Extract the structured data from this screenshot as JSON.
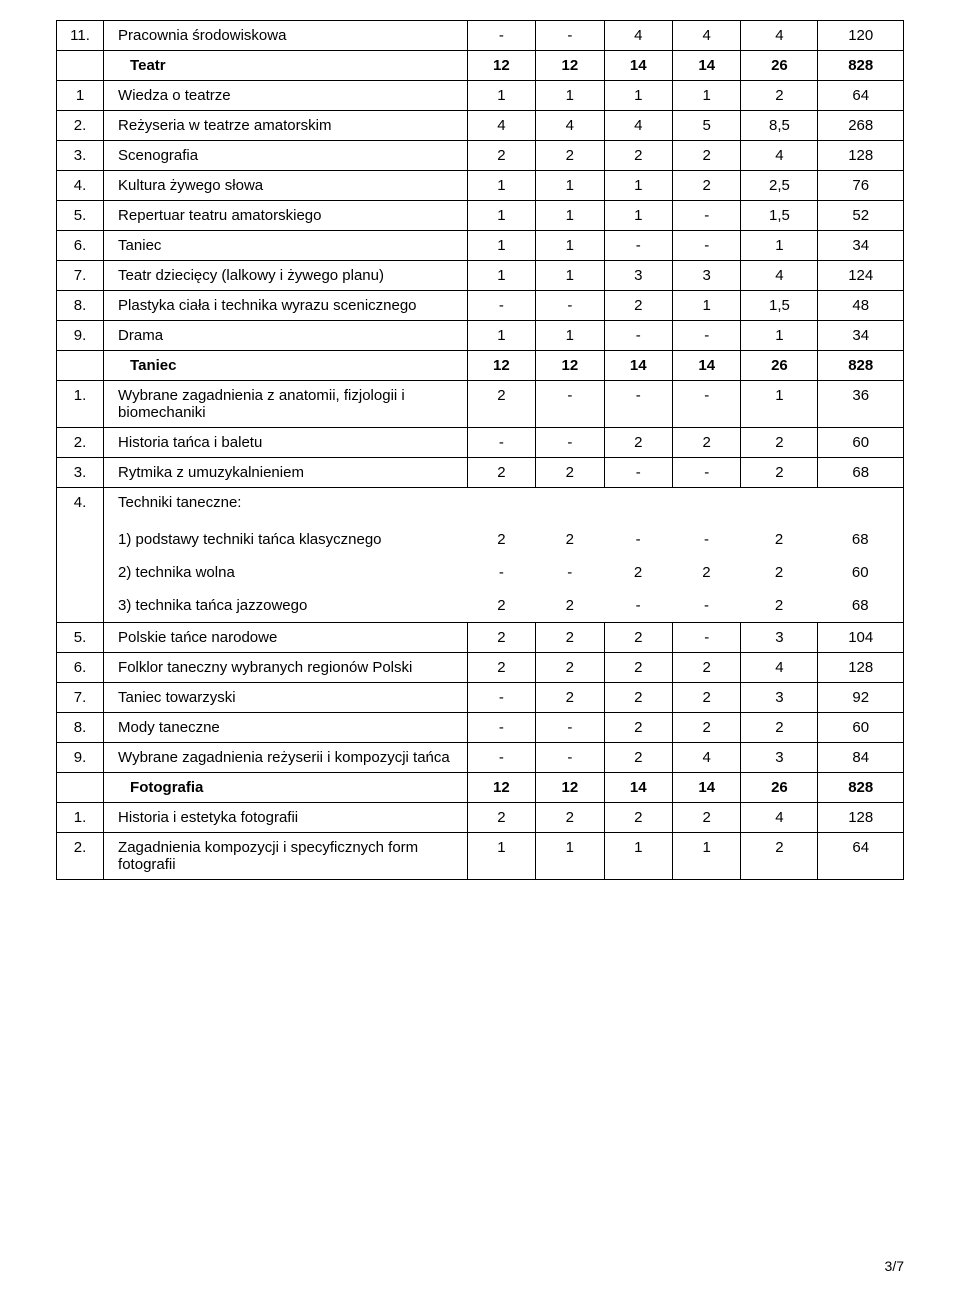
{
  "footer": "3/7",
  "rows": [
    {
      "idx": "11.",
      "name": "Pracownia środowiskowa",
      "v": [
        "-",
        "-",
        "4",
        "4",
        "4",
        "120"
      ]
    },
    {
      "header": true,
      "name": "Teatr",
      "v": [
        "12",
        "12",
        "14",
        "14",
        "26",
        "828"
      ]
    },
    {
      "idx": "1",
      "name": "Wiedza o teatrze",
      "v": [
        "1",
        "1",
        "1",
        "1",
        "2",
        "64"
      ]
    },
    {
      "idx": "2.",
      "name": "Reżyseria w teatrze amatorskim",
      "v": [
        "4",
        "4",
        "4",
        "5",
        "8,5",
        "268"
      ]
    },
    {
      "idx": "3.",
      "name": "Scenografia",
      "v": [
        "2",
        "2",
        "2",
        "2",
        "4",
        "128"
      ]
    },
    {
      "idx": "4.",
      "name": "Kultura żywego słowa",
      "v": [
        "1",
        "1",
        "1",
        "2",
        "2,5",
        "76"
      ]
    },
    {
      "idx": "5.",
      "name": "Repertuar teatru amatorskiego",
      "v": [
        "1",
        "1",
        "1",
        "-",
        "1,5",
        "52"
      ]
    },
    {
      "idx": "6.",
      "name": "Taniec",
      "v": [
        "1",
        "1",
        "-",
        "-",
        "1",
        "34"
      ]
    },
    {
      "idx": "7.",
      "name": "Teatr dziecięcy (lalkowy i żywego planu)",
      "v": [
        "1",
        "1",
        "3",
        "3",
        "4",
        "124"
      ]
    },
    {
      "idx": "8.",
      "name": "Plastyka ciała i technika wyrazu scenicznego",
      "v": [
        "-",
        "-",
        "2",
        "1",
        "1,5",
        "48"
      ]
    },
    {
      "idx": "9.",
      "name": "Drama",
      "v": [
        "1",
        "1",
        "-",
        "-",
        "1",
        "34"
      ]
    },
    {
      "header": true,
      "name": "Taniec",
      "v": [
        "12",
        "12",
        "14",
        "14",
        "26",
        "828"
      ]
    },
    {
      "idx": "1.",
      "name": "Wybrane zagadnienia z anatomii, fizjologii i biomechaniki",
      "v": [
        "2",
        "-",
        "-",
        "-",
        "1",
        "36"
      ]
    },
    {
      "idx": "2.",
      "name": "Historia tańca i baletu",
      "v": [
        "-",
        "-",
        "2",
        "2",
        "2",
        "60"
      ]
    },
    {
      "idx": "3.",
      "name": "Rytmika z umuzykalnieniem",
      "v": [
        "2",
        "2",
        "-",
        "-",
        "2",
        "68"
      ]
    },
    {
      "idx": "4.",
      "name": "Techniki taneczne:",
      "v": [
        "",
        "",
        "",
        "",
        "",
        ""
      ]
    },
    {
      "sub": true,
      "name": "1) podstawy techniki tańca klasycznego",
      "v": [
        "2",
        "2",
        "-",
        "-",
        "2",
        "68"
      ]
    },
    {
      "sub": true,
      "name": "2) technika wolna",
      "v": [
        "-",
        "-",
        "2",
        "2",
        "2",
        "60"
      ]
    },
    {
      "sub": true,
      "name": "3) technika tańca jazzowego",
      "v": [
        "2",
        "2",
        "-",
        "-",
        "2",
        "68"
      ]
    },
    {
      "idx": "5.",
      "name": "Polskie tańce narodowe",
      "v": [
        "2",
        "2",
        "2",
        "-",
        "3",
        "104"
      ]
    },
    {
      "idx": "6.",
      "name": "Folklor taneczny wybranych regionów Polski",
      "v": [
        "2",
        "2",
        "2",
        "2",
        "4",
        "128"
      ]
    },
    {
      "idx": "7.",
      "name": "Taniec towarzyski",
      "v": [
        "-",
        "2",
        "2",
        "2",
        "3",
        "92"
      ]
    },
    {
      "idx": "8.",
      "name": "Mody taneczne",
      "v": [
        "-",
        "-",
        "2",
        "2",
        "2",
        "60"
      ]
    },
    {
      "idx": "9.",
      "name": "Wybrane zagadnienia reżyserii i kompozycji tańca",
      "v": [
        "-",
        "-",
        "2",
        "4",
        "3",
        "84"
      ]
    },
    {
      "header": true,
      "name": "Fotografia",
      "v": [
        "12",
        "12",
        "14",
        "14",
        "26",
        "828"
      ]
    },
    {
      "idx": "1.",
      "name": "Historia i estetyka fotografii",
      "v": [
        "2",
        "2",
        "2",
        "2",
        "4",
        "128"
      ]
    },
    {
      "idx": "2.",
      "name": "Zagadnienia kompozycji i specyficznych form fotografii",
      "v": [
        "1",
        "1",
        "1",
        "1",
        "2",
        "64"
      ]
    }
  ]
}
